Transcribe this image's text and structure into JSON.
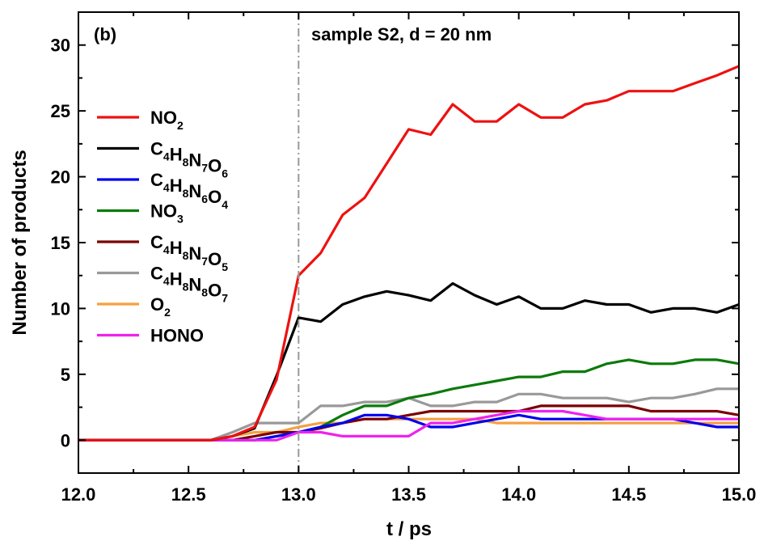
{
  "chart_data": {
    "type": "line",
    "panel_label": "(b)",
    "annotation": "sample S2, d = 20 nm",
    "xlabel": "t / ps",
    "ylabel": "Number of products",
    "xlim": [
      12.0,
      15.0
    ],
    "ylim": [
      -2.5,
      32.5
    ],
    "xticks": [
      "12.0",
      "12.5",
      "13.0",
      "13.5",
      "14.0",
      "14.5",
      "15.0"
    ],
    "yticks": [
      "0",
      "5",
      "10",
      "15",
      "20",
      "25",
      "30"
    ],
    "vline_x": 13.0,
    "grid": false,
    "legend_position": "left",
    "series": [
      {
        "legend": [
          {
            "t": "NO"
          },
          {
            "t": "2",
            "sub": true
          }
        ],
        "color": "#ee1111",
        "x": [
          12.0,
          12.6,
          12.7,
          12.8,
          12.9,
          13.0,
          13.1,
          13.2,
          13.3,
          13.4,
          13.5,
          13.6,
          13.7,
          13.8,
          13.9,
          14.0,
          14.1,
          14.2,
          14.3,
          14.4,
          14.5,
          14.6,
          14.7,
          14.8,
          14.9,
          15.0
        ],
        "y": [
          0,
          0,
          0.3,
          1.0,
          4.6,
          12.5,
          14.2,
          17.1,
          18.4,
          21.0,
          23.6,
          23.2,
          25.5,
          24.2,
          24.2,
          25.5,
          24.5,
          24.5,
          25.5,
          25.8,
          26.5,
          26.5,
          26.5,
          27.1,
          27.7,
          28.4
        ]
      },
      {
        "legend": [
          {
            "t": "C"
          },
          {
            "t": "4",
            "sub": true
          },
          {
            "t": "H"
          },
          {
            "t": "8",
            "sub": true
          },
          {
            "t": "N"
          },
          {
            "t": "7",
            "sub": true
          },
          {
            "t": "O"
          },
          {
            "t": "6",
            "sub": true
          }
        ],
        "color": "#000000",
        "x": [
          12.0,
          12.6,
          12.7,
          12.8,
          12.9,
          13.0,
          13.1,
          13.2,
          13.3,
          13.4,
          13.5,
          13.6,
          13.7,
          13.8,
          13.9,
          14.0,
          14.1,
          14.2,
          14.3,
          14.4,
          14.5,
          14.6,
          14.7,
          14.8,
          14.9,
          15.0
        ],
        "y": [
          0,
          0,
          0.3,
          0.9,
          4.9,
          9.3,
          9.0,
          10.3,
          10.9,
          11.3,
          11.0,
          10.6,
          11.9,
          11.0,
          10.3,
          10.9,
          10.0,
          10.0,
          10.6,
          10.3,
          10.3,
          9.7,
          10.0,
          10.0,
          9.7,
          10.3
        ]
      },
      {
        "legend": [
          {
            "t": "C"
          },
          {
            "t": "4",
            "sub": true
          },
          {
            "t": "H"
          },
          {
            "t": "8",
            "sub": true
          },
          {
            "t": "N"
          },
          {
            "t": "6",
            "sub": true
          },
          {
            "t": "O"
          },
          {
            "t": "4",
            "sub": true
          }
        ],
        "color": "#0000ee",
        "x": [
          12.0,
          12.8,
          12.9,
          13.0,
          13.1,
          13.2,
          13.3,
          13.4,
          13.5,
          13.6,
          13.7,
          13.8,
          13.9,
          14.0,
          14.1,
          14.2,
          14.3,
          14.4,
          14.5,
          14.6,
          14.7,
          14.8,
          14.9,
          15.0
        ],
        "y": [
          0,
          0,
          0.3,
          0.6,
          1.0,
          1.3,
          1.9,
          1.9,
          1.6,
          1.0,
          1.0,
          1.3,
          1.6,
          1.9,
          1.6,
          1.6,
          1.6,
          1.6,
          1.6,
          1.6,
          1.6,
          1.3,
          1.0,
          1.0
        ]
      },
      {
        "legend": [
          {
            "t": "NO"
          },
          {
            "t": "3",
            "sub": true
          }
        ],
        "color": "#0b7a0b",
        "x": [
          12.0,
          12.8,
          12.9,
          13.0,
          13.1,
          13.2,
          13.3,
          13.4,
          13.5,
          13.6,
          13.7,
          13.8,
          13.9,
          14.0,
          14.1,
          14.2,
          14.3,
          14.4,
          14.5,
          14.6,
          14.7,
          14.8,
          14.9,
          15.0
        ],
        "y": [
          0,
          0,
          0.3,
          0.6,
          1.0,
          1.9,
          2.6,
          2.6,
          3.2,
          3.5,
          3.9,
          4.2,
          4.5,
          4.8,
          4.8,
          5.2,
          5.2,
          5.8,
          6.1,
          5.8,
          5.8,
          6.1,
          6.1,
          5.8
        ]
      },
      {
        "legend": [
          {
            "t": "C"
          },
          {
            "t": "4",
            "sub": true
          },
          {
            "t": "H"
          },
          {
            "t": "8",
            "sub": true
          },
          {
            "t": "N"
          },
          {
            "t": "7",
            "sub": true
          },
          {
            "t": "O"
          },
          {
            "t": "5",
            "sub": true
          }
        ],
        "color": "#7a0000",
        "x": [
          12.0,
          12.7,
          12.8,
          12.9,
          13.0,
          13.1,
          13.2,
          13.3,
          13.4,
          13.5,
          13.6,
          13.7,
          13.8,
          13.9,
          14.0,
          14.1,
          14.2,
          14.3,
          14.4,
          14.5,
          14.6,
          14.7,
          14.8,
          14.9,
          15.0
        ],
        "y": [
          0,
          0,
          0.3,
          0.6,
          0.6,
          0.9,
          1.3,
          1.6,
          1.6,
          1.9,
          2.2,
          2.2,
          2.2,
          2.2,
          2.2,
          2.6,
          2.6,
          2.6,
          2.6,
          2.6,
          2.2,
          2.2,
          2.2,
          2.2,
          1.9
        ]
      },
      {
        "legend": [
          {
            "t": "C"
          },
          {
            "t": "4",
            "sub": true
          },
          {
            "t": "H"
          },
          {
            "t": "8",
            "sub": true
          },
          {
            "t": "N"
          },
          {
            "t": "8",
            "sub": true
          },
          {
            "t": "O"
          },
          {
            "t": "7",
            "sub": true
          }
        ],
        "color": "#999999",
        "x": [
          12.0,
          12.6,
          12.7,
          12.8,
          12.9,
          13.0,
          13.1,
          13.2,
          13.3,
          13.4,
          13.5,
          13.6,
          13.7,
          13.8,
          13.9,
          14.0,
          14.1,
          14.2,
          14.3,
          14.4,
          14.5,
          14.6,
          14.7,
          14.8,
          14.9,
          15.0
        ],
        "y": [
          0,
          0,
          0.6,
          1.3,
          1.3,
          1.3,
          2.6,
          2.6,
          2.9,
          2.9,
          3.2,
          2.6,
          2.6,
          2.9,
          2.9,
          3.5,
          3.5,
          3.2,
          3.2,
          3.2,
          2.9,
          3.2,
          3.2,
          3.5,
          3.9,
          3.9
        ]
      },
      {
        "legend": [
          {
            "t": "O"
          },
          {
            "t": "2",
            "sub": true
          }
        ],
        "color": "#f5a040",
        "x": [
          12.0,
          12.6,
          12.7,
          12.8,
          12.9,
          13.0,
          13.1,
          13.2,
          13.3,
          13.4,
          13.5,
          13.6,
          13.7,
          13.8,
          13.9,
          14.0,
          14.1,
          14.2,
          14.3,
          14.4,
          14.5,
          14.6,
          14.7,
          14.8,
          14.9,
          15.0
        ],
        "y": [
          0,
          0,
          0.3,
          0.6,
          0.6,
          1.0,
          1.3,
          1.3,
          1.6,
          1.6,
          1.6,
          1.6,
          1.6,
          1.6,
          1.3,
          1.3,
          1.3,
          1.3,
          1.3,
          1.3,
          1.3,
          1.3,
          1.3,
          1.3,
          1.3,
          1.3
        ]
      },
      {
        "legend": [
          {
            "t": "HONO"
          }
        ],
        "color": "#ee22ee",
        "x": [
          12.0,
          12.9,
          13.0,
          13.1,
          13.2,
          13.3,
          13.4,
          13.5,
          13.6,
          13.7,
          13.8,
          13.9,
          14.0,
          14.1,
          14.2,
          14.3,
          14.4,
          14.5,
          14.6,
          14.7,
          14.8,
          14.9,
          15.0
        ],
        "y": [
          0,
          0,
          0.6,
          0.6,
          0.3,
          0.3,
          0.3,
          0.3,
          1.3,
          1.3,
          1.6,
          1.9,
          2.2,
          2.2,
          2.2,
          1.9,
          1.6,
          1.6,
          1.6,
          1.6,
          1.6,
          1.6,
          1.6
        ]
      }
    ]
  }
}
